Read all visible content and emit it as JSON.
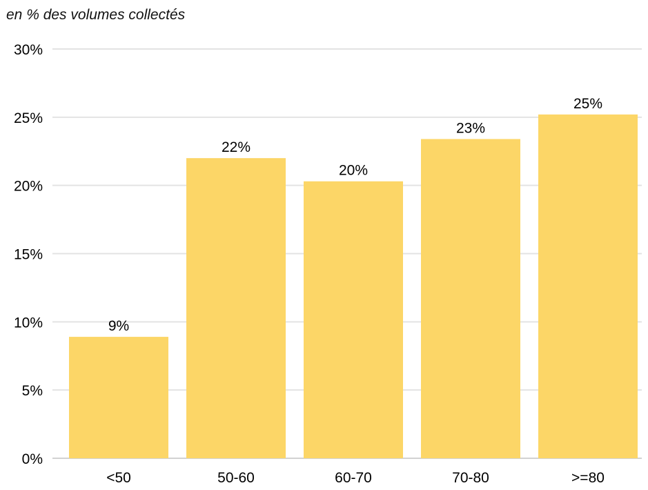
{
  "chart_data": {
    "type": "bar",
    "title": "",
    "subtitle": "en % des volumes collectés",
    "xlabel": "",
    "ylabel": "",
    "categories": [
      "<50",
      "50-60",
      "60-70",
      "70-80",
      ">=80"
    ],
    "values": [
      9,
      22,
      20,
      23,
      25
    ],
    "data_labels": [
      "9%",
      "22%",
      "20%",
      "23%",
      "25%"
    ],
    "plotted_values": [
      8.9,
      22.0,
      20.3,
      23.4,
      25.2
    ],
    "ylim": [
      0,
      30
    ],
    "yticks": [
      0,
      5,
      10,
      15,
      20,
      25,
      30
    ],
    "ytick_labels": [
      "0%",
      "5%",
      "10%",
      "15%",
      "20%",
      "25%",
      "30%"
    ],
    "grid": true,
    "legend": "none",
    "bar_color": "#fcd667",
    "grid_color": "#e3e3e3"
  }
}
